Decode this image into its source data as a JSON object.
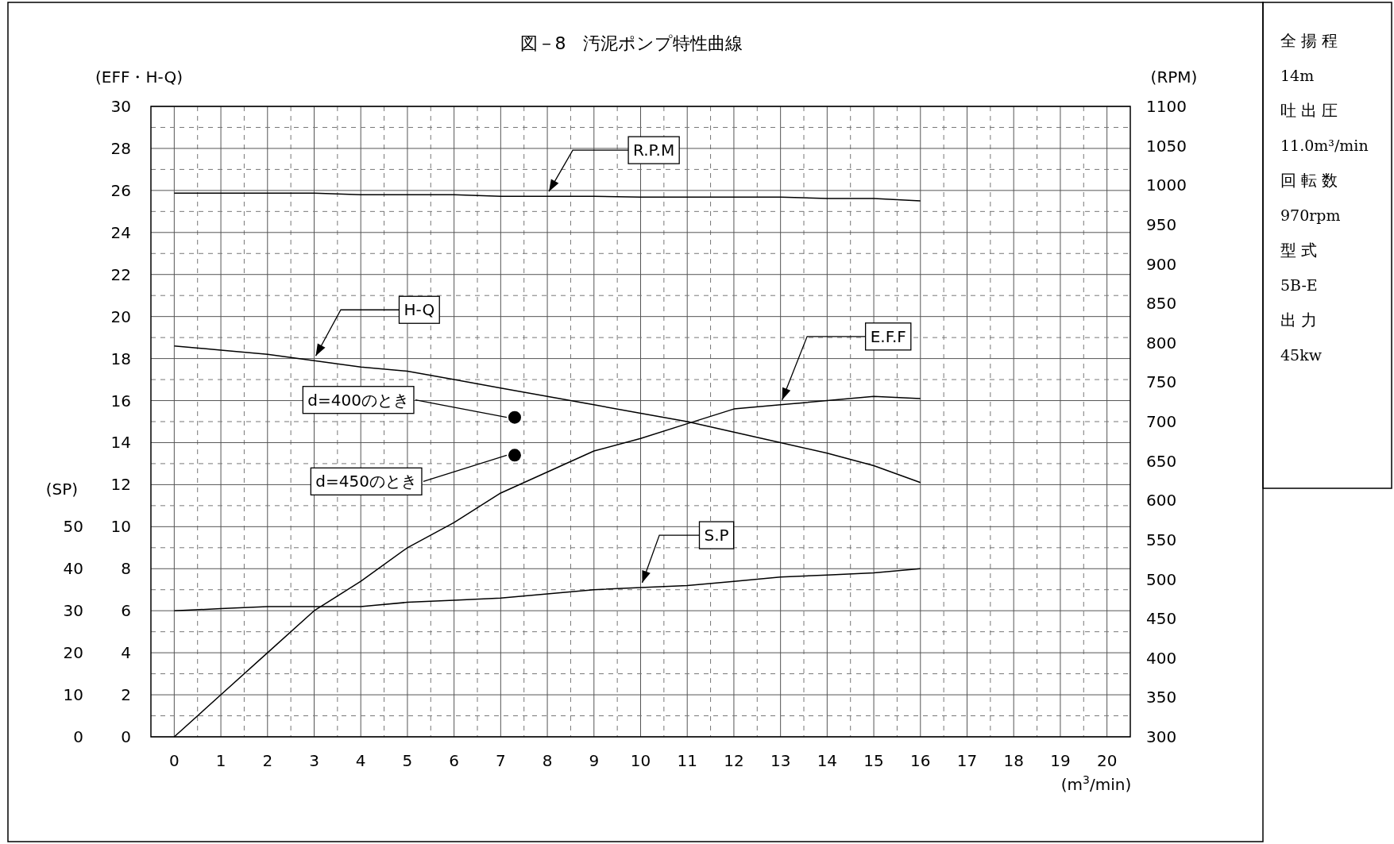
{
  "chart_data": [
    {
      "type": "line",
      "title": "図－8　汚泥ポンプ特性曲線",
      "xlabel": "(m$^{3}$/min)",
      "ylabel": "(EFF・H-Q)",
      "y2label": "(RPM)",
      "y3label": "(SP)",
      "xlim": [
        -0.5,
        20.5
      ],
      "xticks": [
        0,
        1,
        2,
        3,
        4,
        5,
        6,
        7,
        8,
        9,
        10,
        11,
        12,
        13,
        14,
        15,
        16,
        17,
        18,
        19,
        20
      ],
      "ylim": [
        0,
        30
      ],
      "yticks": [
        0,
        2,
        4,
        6,
        8,
        10,
        12,
        14,
        16,
        18,
        20,
        22,
        24,
        26,
        28,
        30
      ],
      "y2lim": [
        300,
        1100
      ],
      "y2ticks": [
        300,
        350,
        400,
        450,
        500,
        550,
        600,
        650,
        700,
        750,
        800,
        850,
        900,
        950,
        1000,
        1050,
        1100
      ],
      "y3lim": [
        0,
        150
      ],
      "y3ticks": [
        0,
        10,
        20,
        30,
        40,
        50
      ],
      "grid": true,
      "marker": "none",
      "line_style": "solid",
      "series": [
        {
          "name": "R.P.M",
          "color": "#000000",
          "axis": "y2",
          "x": [
            0,
            1,
            2,
            3,
            4,
            5,
            6,
            7,
            8,
            9,
            10,
            11,
            12,
            13,
            14,
            15,
            16
          ],
          "values": [
            990,
            990,
            990,
            990,
            988,
            988,
            988,
            986,
            986,
            986,
            985,
            985,
            985,
            985,
            983,
            983,
            980
          ]
        },
        {
          "name": "H-Q",
          "color": "#000000",
          "axis": "y",
          "x": [
            0,
            1,
            2,
            3,
            4,
            5,
            6,
            7,
            8,
            9,
            10,
            11,
            12,
            13,
            14,
            15,
            16
          ],
          "values": [
            18.6,
            18.4,
            18.2,
            17.9,
            17.6,
            17.4,
            17.0,
            16.6,
            16.2,
            15.8,
            15.4,
            15.0,
            14.5,
            14.0,
            13.5,
            12.9,
            12.1
          ]
        },
        {
          "name": "E.F.F",
          "color": "#000000",
          "axis": "y",
          "x": [
            0,
            1,
            2,
            3,
            4,
            5,
            6,
            7,
            8,
            9,
            10,
            11,
            12,
            13,
            14,
            15,
            16
          ],
          "values": [
            0,
            2,
            4,
            6,
            7.4,
            9.0,
            10.2,
            11.6,
            12.6,
            13.6,
            14.2,
            14.9,
            15.6,
            15.8,
            16.0,
            16.2,
            16.1
          ]
        },
        {
          "name": "S.P",
          "color": "#000000",
          "axis": "y3",
          "x": [
            0,
            1,
            2,
            3,
            4,
            5,
            6,
            7,
            8,
            9,
            10,
            11,
            12,
            13,
            14,
            15,
            16
          ],
          "values": [
            30,
            30.5,
            31,
            31,
            31,
            32,
            32.5,
            33,
            34,
            35,
            35.5,
            36,
            37,
            38,
            38.5,
            39,
            40
          ]
        },
        {
          "name": "d=400のとき",
          "type": "scatter",
          "marker": "circle",
          "color": "#000000",
          "axis": "y",
          "x": [
            7.3
          ],
          "values": [
            15.2
          ]
        },
        {
          "name": "d=450のとき",
          "type": "scatter",
          "marker": "circle",
          "color": "#000000",
          "axis": "y",
          "x": [
            7.3
          ],
          "values": [
            13.4
          ]
        }
      ]
    },
    {
      "type": "other",
      "annotations": [
        "全揚程",
        "14m",
        "吐出圧",
        "11.0m³/min",
        "回転数",
        "970rpm",
        "型式",
        "5B-E",
        "出力",
        "45kw"
      ]
    }
  ]
}
